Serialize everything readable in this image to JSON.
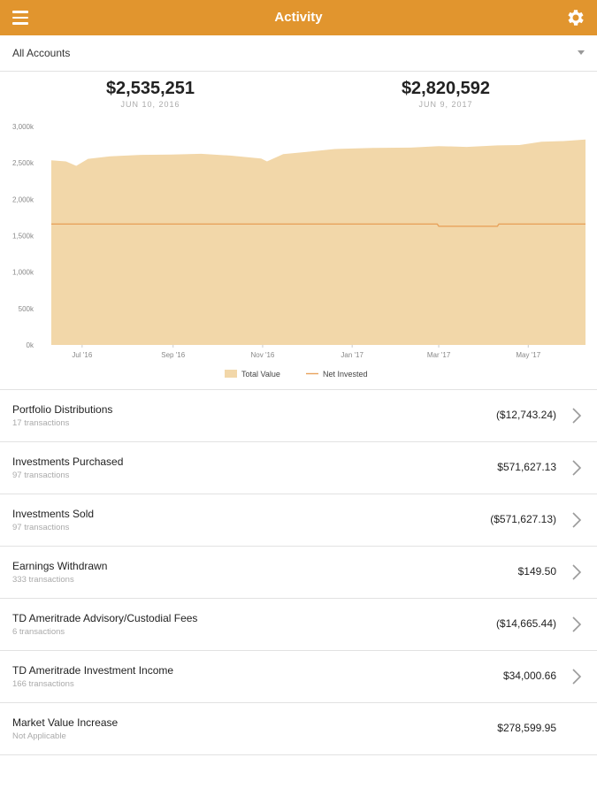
{
  "header": {
    "title": "Activity"
  },
  "account_selector": {
    "value": "All Accounts"
  },
  "summary": {
    "start": {
      "value": "$2,535,251",
      "date": "JUN 10, 2016"
    },
    "end": {
      "value": "$2,820,592",
      "date": "JUN 9, 2017"
    }
  },
  "colors": {
    "header": "#e1952e",
    "area_fill": "#f2d7a9",
    "net_line": "#e8a35c"
  },
  "chart_data": {
    "type": "area",
    "y_ticks": [
      "0k",
      "500k",
      "1,000k",
      "1,500k",
      "2,000k",
      "2,500k",
      "3,000k"
    ],
    "x_ticks": [
      "Jul '16",
      "Sep '16",
      "Nov '16",
      "Jan '17",
      "Mar '17",
      "May '17"
    ],
    "ylim": [
      0,
      3000
    ],
    "x_range": [
      "2016-06-10",
      "2017-06-09"
    ],
    "grid": false,
    "legend_position": "bottom",
    "series": [
      {
        "name": "Total Value",
        "points": [
          [
            "2016-06-10",
            2535
          ],
          [
            "2016-06-20",
            2520
          ],
          [
            "2016-06-27",
            2460
          ],
          [
            "2016-07-05",
            2555
          ],
          [
            "2016-07-20",
            2590
          ],
          [
            "2016-08-10",
            2610
          ],
          [
            "2016-08-31",
            2615
          ],
          [
            "2016-09-20",
            2625
          ],
          [
            "2016-10-10",
            2600
          ],
          [
            "2016-10-31",
            2560
          ],
          [
            "2016-11-04",
            2520
          ],
          [
            "2016-11-15",
            2620
          ],
          [
            "2016-12-01",
            2650
          ],
          [
            "2016-12-20",
            2690
          ],
          [
            "2017-01-15",
            2705
          ],
          [
            "2017-02-10",
            2710
          ],
          [
            "2017-03-01",
            2730
          ],
          [
            "2017-03-20",
            2720
          ],
          [
            "2017-04-10",
            2740
          ],
          [
            "2017-04-25",
            2745
          ],
          [
            "2017-05-10",
            2790
          ],
          [
            "2017-05-25",
            2800
          ],
          [
            "2017-06-09",
            2820
          ]
        ]
      },
      {
        "name": "Net Invested",
        "points": [
          [
            "2016-06-10",
            1660
          ],
          [
            "2017-02-28",
            1660
          ],
          [
            "2017-03-01",
            1630
          ],
          [
            "2017-04-10",
            1630
          ],
          [
            "2017-04-11",
            1660
          ],
          [
            "2017-06-09",
            1660
          ]
        ]
      }
    ]
  },
  "rows": [
    {
      "label": "Portfolio Distributions",
      "sub": "17 transactions",
      "amount": "($12,743.24)",
      "chevron": true
    },
    {
      "label": "Investments Purchased",
      "sub": "97 transactions",
      "amount": "$571,627.13",
      "chevron": true
    },
    {
      "label": "Investments Sold",
      "sub": "97 transactions",
      "amount": "($571,627.13)",
      "chevron": true
    },
    {
      "label": "Earnings Withdrawn",
      "sub": "333 transactions",
      "amount": "$149.50",
      "chevron": true
    },
    {
      "label": "TD Ameritrade Advisory/Custodial Fees",
      "sub": "6 transactions",
      "amount": "($14,665.44)",
      "chevron": true
    },
    {
      "label": "TD Ameritrade Investment Income",
      "sub": "166 transactions",
      "amount": "$34,000.66",
      "chevron": true
    },
    {
      "label": "Market Value Increase",
      "sub": "Not Applicable",
      "amount": "$278,599.95",
      "chevron": false
    }
  ]
}
